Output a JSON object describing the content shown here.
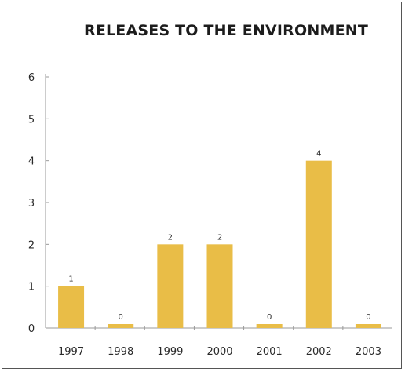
{
  "chart_data": {
    "type": "bar",
    "title": "RELEASES TO THE ENVIRONMENT",
    "xlabel": "",
    "ylabel": "",
    "categories": [
      "1997",
      "1998",
      "1999",
      "2000",
      "2001",
      "2002",
      "2003"
    ],
    "values": [
      1,
      0,
      2,
      2,
      0,
      4,
      0
    ],
    "data_labels": [
      "1",
      "0",
      "2",
      "2",
      "0",
      "4",
      "0"
    ],
    "ylim": [
      0,
      6
    ],
    "yticks": [
      "0",
      "1",
      "2",
      "3",
      "4",
      "5",
      "6"
    ],
    "grid": false,
    "legend": "none",
    "colors": {
      "bar": "#e9bd47",
      "axis": "#9a9a9a",
      "text": "#2a2a2a"
    }
  }
}
